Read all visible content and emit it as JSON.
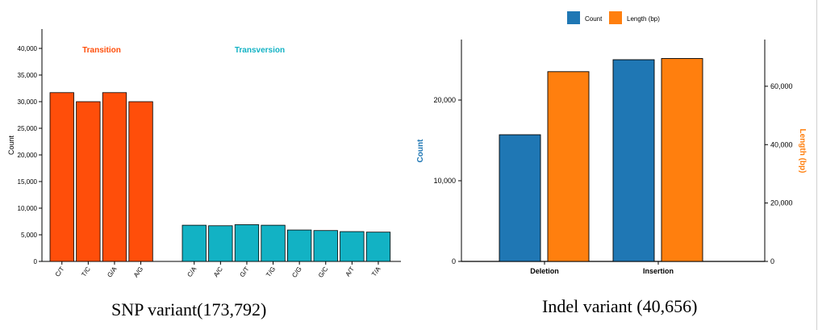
{
  "captions": {
    "snp": "SNP variant(173,792)",
    "indel": "Indel variant (40,656)"
  },
  "colors": {
    "transition": "#FF4E0A",
    "transversion": "#12B2C4",
    "count": "#1F77B4",
    "length": "#FF7F0E",
    "bar_stroke": "#000000"
  },
  "chart_data": [
    {
      "type": "bar",
      "ylabel": "Count",
      "ylim": [
        0,
        40000
      ],
      "yticks": [
        "0",
        "5,000",
        "10,000",
        "15,000",
        "20,000",
        "25,000",
        "30,000",
        "35,000",
        "40,000"
      ],
      "grid": false,
      "groups": [
        {
          "name": "Transition",
          "categories": [
            "C/T",
            "T/C",
            "G/A",
            "A/G"
          ],
          "values": [
            31700,
            30000,
            31700,
            30000
          ]
        },
        {
          "name": "Transversion",
          "categories": [
            "C/A",
            "A/C",
            "G/T",
            "T/G",
            "C/G",
            "G/C",
            "A/T",
            "T/A"
          ],
          "values": [
            6800,
            6700,
            6900,
            6800,
            5900,
            5800,
            5600,
            5500
          ]
        }
      ]
    },
    {
      "type": "bar",
      "categories": [
        "Deletion",
        "Insertion"
      ],
      "series": [
        {
          "name": "Count",
          "axis": "left",
          "values": [
            15700,
            25000
          ]
        },
        {
          "name": "Length (bp)",
          "axis": "right",
          "values": [
            65000,
            69500
          ]
        }
      ],
      "ylabel_left": "Count",
      "ylabel_right": "Length (bp)",
      "ylim_left": [
        0,
        27500
      ],
      "ylim_right": [
        0,
        76000
      ],
      "yticks_left": [
        "0",
        "10,000",
        "20,000"
      ],
      "yticks_right": [
        "0",
        "20,000",
        "40,000",
        "60,000"
      ],
      "legend": "top-center",
      "grid": false
    }
  ]
}
